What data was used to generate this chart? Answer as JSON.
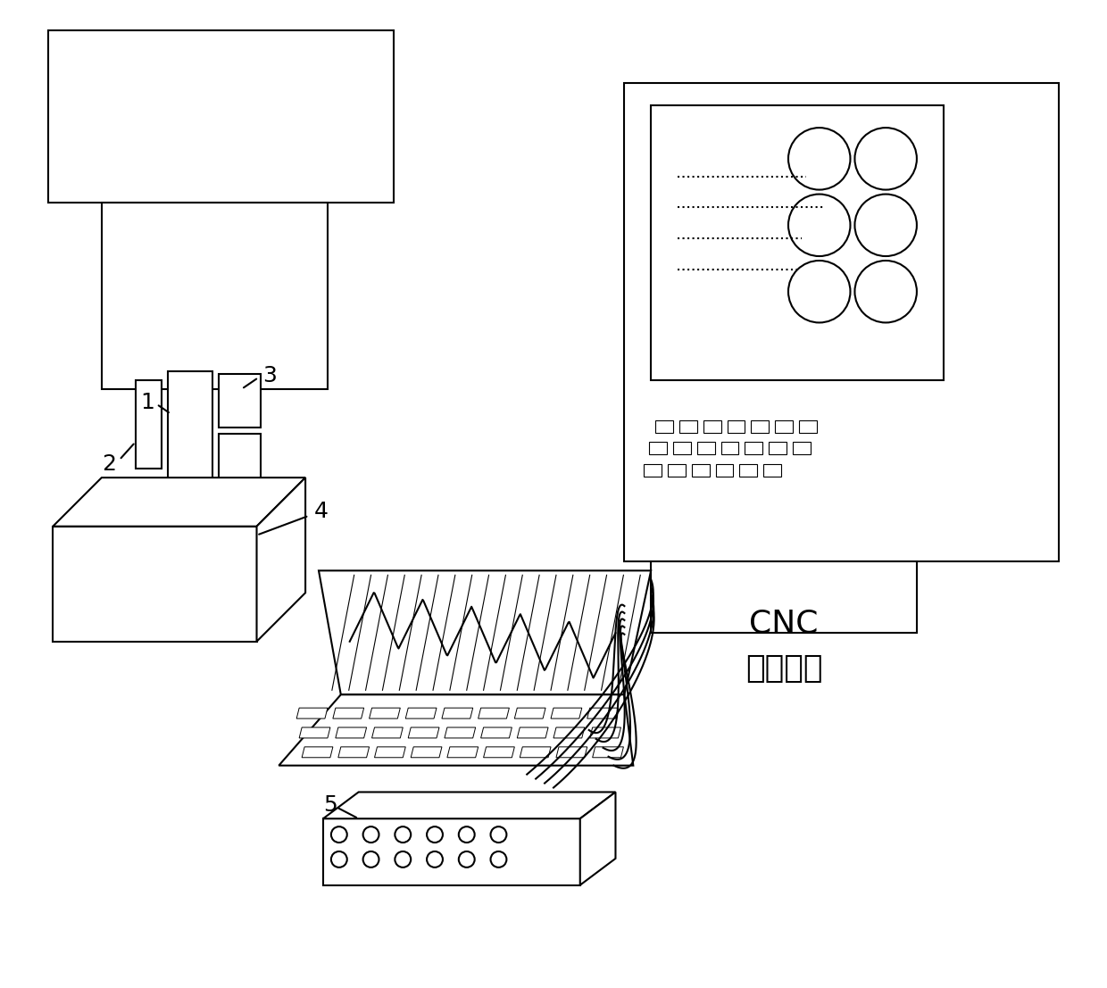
{
  "bg_color": "#ffffff",
  "line_color": "#000000",
  "lw": 1.5,
  "cnc_label1": "CNC",
  "cnc_label2": "数控系统"
}
